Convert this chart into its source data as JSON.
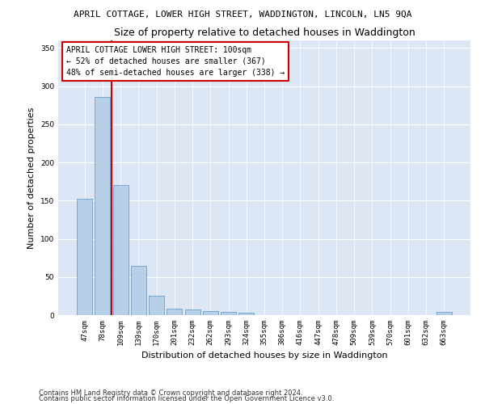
{
  "title1": "APRIL COTTAGE, LOWER HIGH STREET, WADDINGTON, LINCOLN, LN5 9QA",
  "title2": "Size of property relative to detached houses in Waddington",
  "xlabel": "Distribution of detached houses by size in Waddington",
  "ylabel": "Number of detached properties",
  "footer1": "Contains HM Land Registry data © Crown copyright and database right 2024.",
  "footer2": "Contains public sector information licensed under the Open Government Licence v3.0.",
  "annotation_line1": "APRIL COTTAGE LOWER HIGH STREET: 100sqm",
  "annotation_line2": "← 52% of detached houses are smaller (367)",
  "annotation_line3": "48% of semi-detached houses are larger (338) →",
  "bar_color": "#b8cfe8",
  "bar_edge_color": "#6aa0cc",
  "vline_color": "#cc0000",
  "bg_color": "#dce6f5",
  "title1_fontsize": 8.0,
  "title2_fontsize": 9.0,
  "xlabel_fontsize": 8.0,
  "ylabel_fontsize": 8.0,
  "tick_fontsize": 6.5,
  "annotation_fontsize": 7.0,
  "footer_fontsize": 6.0,
  "categories": [
    "47sqm",
    "78sqm",
    "109sqm",
    "139sqm",
    "170sqm",
    "201sqm",
    "232sqm",
    "262sqm",
    "293sqm",
    "324sqm",
    "355sqm",
    "386sqm",
    "416sqm",
    "447sqm",
    "478sqm",
    "509sqm",
    "539sqm",
    "570sqm",
    "601sqm",
    "632sqm",
    "663sqm"
  ],
  "values": [
    153,
    286,
    170,
    65,
    25,
    9,
    7,
    5,
    4,
    3,
    0,
    0,
    0,
    0,
    0,
    0,
    0,
    0,
    0,
    0,
    4
  ],
  "vline_position": 1.5,
  "ylim": [
    0,
    360
  ],
  "yticks": [
    0,
    50,
    100,
    150,
    200,
    250,
    300,
    350
  ]
}
